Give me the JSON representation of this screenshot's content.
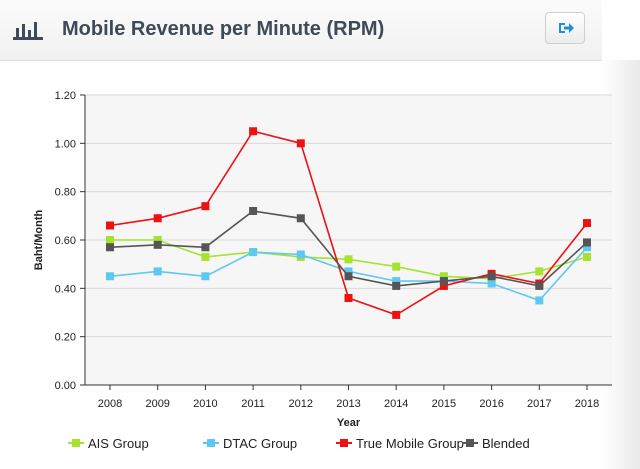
{
  "header": {
    "title": "Mobile Revenue per Minute (RPM)",
    "icon": "bar-chart-icon",
    "export_icon": "export-icon"
  },
  "chart_data": {
    "type": "line",
    "xlabel": "Year",
    "ylabel": "Baht/Month",
    "x": [
      "2008",
      "2009",
      "2010",
      "2011",
      "2012",
      "2013",
      "2014",
      "2015",
      "2016",
      "2017",
      "2018"
    ],
    "ylim": [
      0,
      1.2
    ],
    "yticks": [
      "0.00",
      "0.20",
      "0.40",
      "0.60",
      "0.80",
      "1.00",
      "1.20"
    ],
    "grid": true,
    "legend_position": "bottom",
    "series": [
      {
        "name": "AIS Group",
        "color": "#a6e22e",
        "values": [
          0.6,
          0.6,
          0.53,
          0.55,
          0.53,
          0.52,
          0.49,
          0.45,
          0.44,
          0.47,
          0.53
        ]
      },
      {
        "name": "DTAC Group",
        "color": "#5ec8f2",
        "values": [
          0.45,
          0.47,
          0.45,
          0.55,
          0.54,
          0.47,
          0.43,
          0.43,
          0.42,
          0.35,
          0.57
        ]
      },
      {
        "name": "True Mobile Group",
        "color": "#ee1111",
        "values": [
          0.66,
          0.69,
          0.74,
          1.05,
          1.0,
          0.36,
          0.29,
          0.41,
          0.46,
          0.42,
          0.67
        ]
      },
      {
        "name": "Blended",
        "color": "#555555",
        "values": [
          0.57,
          0.58,
          0.57,
          0.72,
          0.69,
          0.45,
          0.41,
          0.43,
          0.45,
          0.41,
          0.59
        ]
      }
    ]
  }
}
